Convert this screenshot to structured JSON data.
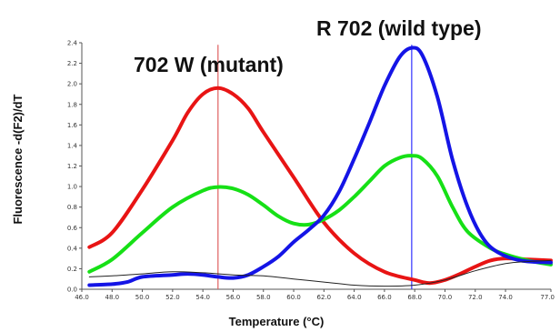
{
  "chart_data": {
    "type": "line",
    "xlabel": "Temperature (°C)",
    "ylabel": "Fluorescence -d(F2)/dT",
    "xlim": [
      46.0,
      77.0
    ],
    "ylim": [
      0.0,
      2.4
    ],
    "x_ticks": [
      "46.0",
      "48.0",
      "50.0",
      "52.0",
      "54.0",
      "56.0",
      "58.0",
      "60.0",
      "62.0",
      "64.0",
      "66.0",
      "68.0",
      "70.0",
      "72.0",
      "74.0",
      "77.0"
    ],
    "y_ticks": [
      "0.0",
      "0.2",
      "0.4",
      "0.6",
      "0.8",
      "1.0",
      "1.2",
      "1.4",
      "1.6",
      "1.8",
      "2.0",
      "2.2",
      "2.4"
    ],
    "annotations": [
      "702 W (mutant)",
      "R 702 (wild type)"
    ],
    "vlines": [
      {
        "x": 55.0,
        "color": "#e06060"
      },
      {
        "x": 67.8,
        "color": "#3030ff"
      }
    ],
    "series": [
      {
        "color": "#e81414",
        "width": 4,
        "points": [
          [
            46.5,
            0.41
          ],
          [
            48,
            0.55
          ],
          [
            50,
            0.97
          ],
          [
            52,
            1.45
          ],
          [
            53,
            1.72
          ],
          [
            54,
            1.9
          ],
          [
            55,
            1.96
          ],
          [
            56,
            1.9
          ],
          [
            57,
            1.76
          ],
          [
            58,
            1.53
          ],
          [
            60,
            1.09
          ],
          [
            62,
            0.65
          ],
          [
            64,
            0.35
          ],
          [
            66,
            0.17
          ],
          [
            68,
            0.09
          ],
          [
            69,
            0.06
          ],
          [
            70,
            0.09
          ],
          [
            71,
            0.15
          ],
          [
            72,
            0.22
          ],
          [
            73,
            0.28
          ],
          [
            74,
            0.3
          ],
          [
            75.5,
            0.29
          ],
          [
            77,
            0.28
          ]
        ]
      },
      {
        "color": "#16e016",
        "width": 4,
        "points": [
          [
            46.5,
            0.17
          ],
          [
            48,
            0.29
          ],
          [
            50,
            0.55
          ],
          [
            52,
            0.8
          ],
          [
            54,
            0.96
          ],
          [
            55,
            0.995
          ],
          [
            56,
            0.98
          ],
          [
            57,
            0.92
          ],
          [
            58,
            0.82
          ],
          [
            59,
            0.71
          ],
          [
            60,
            0.64
          ],
          [
            61,
            0.63
          ],
          [
            62,
            0.68
          ],
          [
            63,
            0.77
          ],
          [
            64,
            0.9
          ],
          [
            65,
            1.05
          ],
          [
            66,
            1.2
          ],
          [
            67,
            1.28
          ],
          [
            67.8,
            1.3
          ],
          [
            68.5,
            1.27
          ],
          [
            69.5,
            1.1
          ],
          [
            70.5,
            0.8
          ],
          [
            71.5,
            0.56
          ],
          [
            73,
            0.4
          ],
          [
            74,
            0.34
          ],
          [
            75.5,
            0.28
          ],
          [
            77,
            0.24
          ]
        ]
      },
      {
        "color": "#1414e6",
        "width": 4,
        "points": [
          [
            46.5,
            0.04
          ],
          [
            48,
            0.05
          ],
          [
            49,
            0.07
          ],
          [
            50,
            0.12
          ],
          [
            52,
            0.14
          ],
          [
            53,
            0.15
          ],
          [
            54,
            0.14
          ],
          [
            55,
            0.12
          ],
          [
            56,
            0.11
          ],
          [
            57,
            0.14
          ],
          [
            58,
            0.22
          ],
          [
            59,
            0.32
          ],
          [
            60,
            0.46
          ],
          [
            61,
            0.58
          ],
          [
            62,
            0.72
          ],
          [
            63,
            0.95
          ],
          [
            64,
            1.27
          ],
          [
            65,
            1.62
          ],
          [
            66,
            1.98
          ],
          [
            67,
            2.26
          ],
          [
            67.8,
            2.35
          ],
          [
            68.5,
            2.28
          ],
          [
            69.5,
            1.87
          ],
          [
            70.5,
            1.26
          ],
          [
            71.5,
            0.8
          ],
          [
            72.5,
            0.5
          ],
          [
            73.5,
            0.36
          ],
          [
            75,
            0.28
          ],
          [
            77,
            0.26
          ]
        ]
      },
      {
        "color": "#222222",
        "width": 1,
        "points": [
          [
            46.5,
            0.12
          ],
          [
            48,
            0.13
          ],
          [
            50,
            0.15
          ],
          [
            52,
            0.17
          ],
          [
            54,
            0.16
          ],
          [
            56,
            0.14
          ],
          [
            58,
            0.13
          ],
          [
            60,
            0.1
          ],
          [
            62,
            0.07
          ],
          [
            64,
            0.04
          ],
          [
            66,
            0.03
          ],
          [
            68,
            0.04
          ],
          [
            70,
            0.09
          ],
          [
            72,
            0.18
          ],
          [
            74,
            0.25
          ],
          [
            75.5,
            0.27
          ],
          [
            77,
            0.28
          ]
        ]
      }
    ]
  }
}
